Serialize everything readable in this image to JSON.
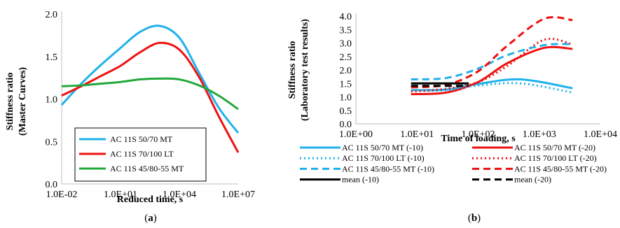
{
  "chart_data": [
    {
      "type": "line",
      "panel_label": "(a)",
      "panel_letter": "a",
      "xlabel": "Reduced time, s",
      "ylabel_lines": [
        "Stiffness ratio",
        "(Master Curves)"
      ],
      "xscale": "log",
      "xlim": [
        0.01,
        10000000
      ],
      "ylim": [
        0,
        2.0
      ],
      "xticks": [
        0.01,
        10,
        10000,
        10000000
      ],
      "xtick_labels": [
        "1.0E-02",
        "1.0E+01",
        "1.0E+04",
        "1.0E+07"
      ],
      "yticks": [
        0,
        0.5,
        1.0,
        1.5,
        2.0
      ],
      "ytick_labels": [
        "0.0",
        "0.5",
        "1.0",
        "1.5",
        "2.0"
      ],
      "grid": false,
      "legend_position": "bottom-left",
      "series": [
        {
          "name": "AC 11S 50/70 MT",
          "color": "#1fb2ea",
          "dash": "solid",
          "x": [
            0.01,
            0.1,
            1,
            10,
            100,
            1000,
            10000,
            100000,
            1000000,
            10000000
          ],
          "y": [
            0.93,
            1.18,
            1.4,
            1.6,
            1.79,
            1.86,
            1.72,
            1.31,
            0.9,
            0.6
          ]
        },
        {
          "name": "AC 11S 70/100 LT",
          "color": "#ee1111",
          "dash": "solid",
          "x": [
            0.01,
            0.1,
            1,
            10,
            100,
            1000,
            10000,
            100000,
            1000000,
            10000000
          ],
          "y": [
            1.04,
            1.15,
            1.27,
            1.39,
            1.55,
            1.66,
            1.58,
            1.26,
            0.8,
            0.37
          ]
        },
        {
          "name": "AC 11S 45/80-55 MT",
          "color": "#22a83a",
          "dash": "solid",
          "x": [
            0.01,
            0.1,
            1,
            10,
            100,
            1000,
            10000,
            100000,
            1000000,
            10000000
          ],
          "y": [
            1.15,
            1.16,
            1.18,
            1.2,
            1.23,
            1.24,
            1.23,
            1.16,
            1.04,
            0.88
          ]
        }
      ]
    },
    {
      "type": "line",
      "panel_label": "(b)",
      "panel_letter": "b",
      "xlabel": "Time of loading, s",
      "ylabel_lines": [
        "Stiffness ratio",
        "(Laboratory test results)"
      ],
      "xscale": "log",
      "xlim": [
        1,
        10000
      ],
      "ylim": [
        0,
        4.0
      ],
      "xticks": [
        1,
        10,
        100,
        1000,
        10000
      ],
      "xtick_labels": [
        "1.0E+00",
        "1.0E+01",
        "1.0E+02",
        "1.0E+03",
        "1.0E+04"
      ],
      "yticks": [
        0,
        0.5,
        1.0,
        1.5,
        2.0,
        2.5,
        3.0,
        3.5,
        4.0
      ],
      "ytick_labels": [
        "0.0",
        "0.5",
        "1.0",
        "1.5",
        "2.0",
        "2.5",
        "3.0",
        "3.5",
        "4.0"
      ],
      "grid": false,
      "legend_position": "bottom",
      "series": [
        {
          "name": "AC 11S 50/70 MT (-10)",
          "color": "#1fb2ea",
          "dash": "solid",
          "x": [
            8,
            30,
            100,
            500,
            3500
          ],
          "y": [
            1.25,
            1.27,
            1.48,
            1.65,
            1.32
          ]
        },
        {
          "name": "AC 11S 50/70 MT (-20)",
          "color": "#ee1111",
          "dash": "solid",
          "x": [
            8,
            30,
            100,
            300,
            1200,
            3500
          ],
          "y": [
            1.1,
            1.16,
            1.55,
            2.25,
            2.82,
            2.78
          ]
        },
        {
          "name": "AC 11S 70/100 LT (-10)",
          "color": "#1fb2ea",
          "dash": "dotted",
          "x": [
            8,
            30,
            100,
            500,
            3500
          ],
          "y": [
            1.22,
            1.25,
            1.42,
            1.5,
            1.16
          ]
        },
        {
          "name": "AC 11S 70/100 LT (-20)",
          "color": "#ee1111",
          "dash": "dotted",
          "x": [
            8,
            30,
            100,
            300,
            1200,
            3500
          ],
          "y": [
            1.2,
            1.3,
            1.55,
            2.15,
            3.12,
            2.95
          ]
        },
        {
          "name": "AC 11S 45/80-55 MT (-10)",
          "color": "#1fb2ea",
          "dash": "dashed",
          "x": [
            8,
            30,
            100,
            300,
            1200,
            3500
          ],
          "y": [
            1.65,
            1.7,
            2.05,
            2.55,
            2.92,
            2.96
          ]
        },
        {
          "name": "AC 11S 45/80-55 MT (-20)",
          "color": "#ee1111",
          "dash": "dashed",
          "x": [
            8,
            30,
            100,
            300,
            1200,
            3500
          ],
          "y": [
            1.35,
            1.45,
            1.95,
            2.9,
            3.9,
            3.85
          ]
        },
        {
          "name": "mean (-10)",
          "color": "#000000",
          "dash": "solid",
          "x": [
            8,
            70
          ],
          "y": [
            1.5,
            1.5
          ]
        },
        {
          "name": "mean (-20)",
          "color": "#000000",
          "dash": "dashed",
          "x": [
            8,
            70
          ],
          "y": [
            1.41,
            1.41
          ]
        }
      ]
    }
  ]
}
